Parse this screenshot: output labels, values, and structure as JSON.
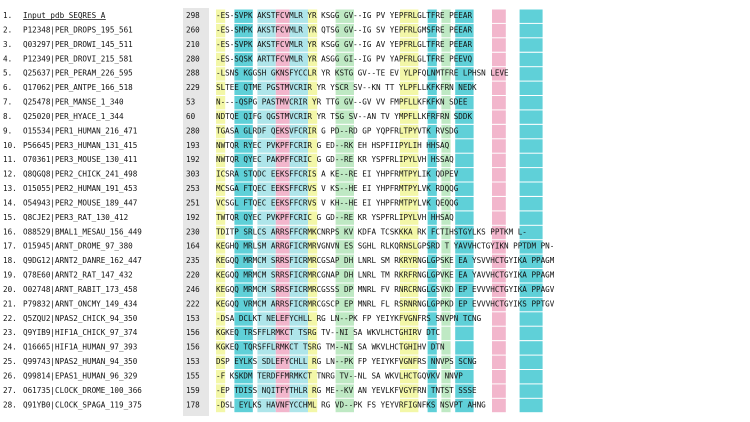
{
  "colors": {
    "strong": "#5fd0d8",
    "medium": "#aee5ea",
    "yellow": "#f3f7a8",
    "green": "#bfe9c4",
    "pink": "#f2b6cc",
    "number_column": "#e6e6e6",
    "text": "#111111"
  },
  "rows": [
    {
      "n": "1.",
      "name": "Input_pdb_SEQRES_A",
      "start": "298",
      "seq": "-ES-SVPK AKSTFCVMLR YR KSGG GV--IG PV YEPFRLGLTFRE PEEAR"
    },
    {
      "n": "2.",
      "name": "P12348|PER_DROPS_195_561",
      "start": "260",
      "seq": "-ES-SMPK AKSTFCVMLR YR QTSG GV--IG SV YEPFRLGMSFRE PEEAR"
    },
    {
      "n": "3.",
      "name": "Q03297|PER_DROWI_145_511",
      "start": "210",
      "seq": "-ES-SVPK AKSTFCVMLR YR KSGG GV--IG AV YEPFRLGLTFRE PEEAR"
    },
    {
      "n": "4.",
      "name": "P12349|PER_DROVI_215_581",
      "start": "280",
      "seq": "-ES-SQSK ARTTFCVMLR YR ASGG GI--IG PV YAPFRLGLTFRE PEEVQ"
    },
    {
      "n": "5.",
      "name": "Q25637|PER_PERAM_226_595",
      "start": "288",
      "seq": "-LSNS KGGSH GKNSFYCCLR YR KSTG GV--TE EV YLPFQLNMTFRE LPHSN LEVE"
    },
    {
      "n": "6.",
      "name": "Q17062|PER_ANTPE_166_518",
      "start": "229",
      "seq": "SLTEE QTME PGSTMVCRIR YR YSCR SV--KN TT YLPFLLKFKFRN NEDK"
    },
    {
      "n": "7.",
      "name": "Q25478|PER_MANSE_1_340",
      "start": "53",
      "seq": "N----QSPG PASTMVCRIR YR TTG GV--GV VV FMPFLLKFKFKN SDEE"
    },
    {
      "n": "8.",
      "name": "Q25020|PER_HYACE_1_344",
      "start": "60",
      "seq": "NDTQE QIFG QGSTMVCRIR YR TSG SV--AN TV YMPFLLKFRFRN SDDK"
    },
    {
      "n": "9.",
      "name": "O15534|PER1_HUMAN_216_471",
      "start": "280",
      "seq": "TGASA GLRDF QEKSVFCRIR G PD--RD GP YQPFRLTPYVTK RVSDG"
    },
    {
      "n": "10.",
      "name": "P56645|PER3_HUMAN_131_415",
      "start": "193",
      "seq": "NWTQR RYEC PVKPFFCRIR G ED--RK EH HSPFIIPYLIH HHSAQ"
    },
    {
      "n": "11.",
      "name": "O70361|PER3_MOUSE_130_411",
      "start": "192",
      "seq": "NWTQR QYEC PAKPFFCRIC G GD--RE KR YSPFRLIPYLVH HSSAQ"
    },
    {
      "n": "12.",
      "name": "Q8QGQ8|PER2_CHICK_241_498",
      "start": "303",
      "seq": "ICSRA STQDC EEKSFFCRIS A KE--RE EI YHPFRMTPYLIK QDPEV"
    },
    {
      "n": "13.",
      "name": "O15055|PER2_HUMAN_191_453",
      "start": "253",
      "seq": "MCSGA FTQEC EEKSFFCRVS V KS--HE EI YHPFRMTPYLVK RDQQG"
    },
    {
      "n": "14.",
      "name": "O54943|PER2_MOUSE_189_447",
      "start": "251",
      "seq": "VCSGL FTQEC EEKSFFCRVS V KH--HE EI YHPFRMTPYLVK QEQQG"
    },
    {
      "n": "15.",
      "name": "Q8CJE2|PER3_RAT_130_412",
      "start": "192",
      "seq": "TWTQR QYEC PVKPFFCRIC G GD--RE KR YSPFRLIPYLVH HHSAQ"
    },
    {
      "n": "16.",
      "name": "O88529|BMAL1_MESAU_156_449",
      "start": "230",
      "seq": "TDITP SRLCS ARRSFFCRMKCNRPS KV KDFA TCSKKKA RK FCTIHSTGYLKS PPTKM L-"
    },
    {
      "n": "17.",
      "name": "O15945|ARNT_DROME_97_380",
      "start": "164",
      "seq": "KEGHQ MRLSM ARRGFICRMRVGNVN ES SGHL RLKQRNSLGPSRD T YAVVHCTGYIKN PPTDM PN-"
    },
    {
      "n": "18.",
      "name": "Q9DG12|ARNT2_DANRE_162_447",
      "start": "235",
      "seq": "KEGQQ MRMCM SRRSFICRMRCGSAP DH LNRL SM RKRYRNGLGPSKE EA YSVVHCTGYIKA PPAGM"
    },
    {
      "n": "19.",
      "name": "Q78E60|ARNT2_RAT_147_432",
      "start": "220",
      "seq": "KEGQQ MRMCM SRRSFICRMRCGNAP DH LNRL TM RKRFRNGLGPVKE EA YAVVHCTGYIKA PPAGM"
    },
    {
      "n": "20.",
      "name": "O02748|ARNT_RABIT_173_458",
      "start": "246",
      "seq": "KEGQQ MRMCM SRRSFICRMRCGSSS DP MNRL FV RNRCRNGLGSVKD EP EVVVHCTGYIKA PPAGV"
    },
    {
      "n": "21.",
      "name": "P79832|ARNT_ONCMY_149_434",
      "start": "222",
      "seq": "KEGQQ VRMCM ARRSFICRMRCGSCP EP MNRL FL RSRNRNGLGPPKD EP EVVVHCTGYIKS PPTGV"
    },
    {
      "n": "22.",
      "name": "Q5ZQU2|NPAS2_CHICK_94_350",
      "start": "153",
      "seq": "-DSA DCLKT NELEFYCHLL RG LN--PK FP YEIYKFVGNFRS SNVPN TCNG"
    },
    {
      "n": "23.",
      "name": "Q9YIB9|HIF1A_CHICK_97_374",
      "start": "156",
      "seq": "KGKEQ TRSFFLRMKCT TSRG TV--NI SA WKVLHCTGHIRV DTC"
    },
    {
      "n": "24.",
      "name": "Q16665|HIF1A_HUMAN_97_393",
      "start": "156",
      "seq": "KGKEQ TQRSFFLRMKCT TSRG TM--NI SA WKVLHCTGHIHV DTN"
    },
    {
      "n": "25.",
      "name": "Q99743|NPAS2_HUMAN_94_350",
      "start": "153",
      "seq": "DSP EYLKS SDLEFYCHLL RG LN--PK FP YEIYKFVGNFRS NNVPS SCNG"
    },
    {
      "n": "26.",
      "name": "Q99814|EPAS1_HUMAN_96_329",
      "start": "155",
      "seq": "-F KSKDM TERDFFMRMKCT TNRG TV--NL SA WKVLHCTGQVKV NNVP"
    },
    {
      "n": "27.",
      "name": "O61735|CLOCK_DROME_100_366",
      "start": "159",
      "seq": "-EP TDISS NQITFYTHLR RG ME--KV AN YEVLKFVGYFRN TNTST SSSE"
    },
    {
      "n": "28.",
      "name": "Q91YB0|CLOCK_SPAGA_119_375",
      "start": "178",
      "seq": "-DSL EYLKS HAVNFYCCHML RG VD--PK FS YEYVRFIGNFKS NSVPT AHNG"
    }
  ]
}
